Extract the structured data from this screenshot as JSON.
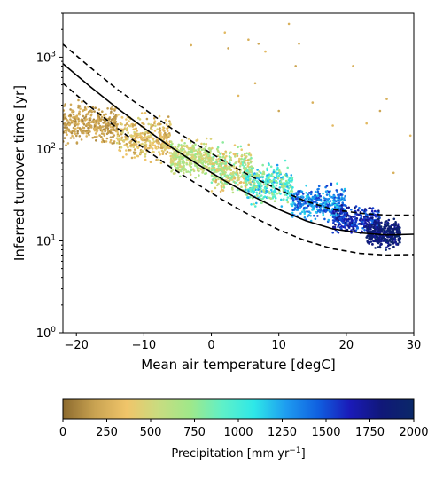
{
  "chart_data": {
    "type": "scatter",
    "xlabel": "Mean air temperature [degC]",
    "ylabel": "Inferred turnover time [yr]",
    "xlim": [
      -22,
      30
    ],
    "ylim": [
      1,
      3000
    ],
    "y_scale": "log",
    "x_ticks": [
      "−20",
      "−10",
      "0",
      "10",
      "20",
      "30"
    ],
    "x_tick_values": [
      -20,
      -10,
      0,
      10,
      20,
      30
    ],
    "y_ticks": [
      1,
      10,
      100,
      1000
    ],
    "grid": false,
    "colorbar": {
      "label_main": "Precipitation [mm yr",
      "label_exp": "−1",
      "label_end": "]",
      "range": [
        0,
        2000
      ],
      "ticks": [
        "0",
        "250",
        "500",
        "750",
        "1000",
        "1250",
        "1500",
        "1750",
        "2000"
      ],
      "colors": [
        "#8c6a2e",
        "#c9a352",
        "#f0c56a",
        "#c8dc80",
        "#9fe88a",
        "#5ff0c8",
        "#2ee8e8",
        "#1e9cf0",
        "#1060e0",
        "#1a1ab8",
        "#101878",
        "#0a2868"
      ]
    },
    "fit_curve": {
      "style": "solid",
      "color": "#000000",
      "x": [
        -22,
        -18,
        -14,
        -10,
        -6,
        -2,
        2,
        6,
        10,
        14,
        18,
        22,
        26,
        30
      ],
      "y": [
        850,
        480,
        280,
        170,
        105,
        68,
        45,
        31,
        22,
        16.5,
        13.5,
        12.2,
        11.6,
        11.8
      ]
    },
    "upper_bound": {
      "style": "dashed",
      "color": "#000000",
      "x": [
        -22,
        -18,
        -14,
        -10,
        -6,
        -2,
        2,
        6,
        10,
        14,
        18,
        22,
        26,
        30
      ],
      "y": [
        1380,
        780,
        450,
        275,
        170,
        110,
        73,
        50,
        36,
        27,
        22,
        20,
        19,
        19
      ]
    },
    "lower_bound": {
      "style": "dashed",
      "color": "#000000",
      "x": [
        -22,
        -18,
        -14,
        -10,
        -6,
        -2,
        2,
        6,
        10,
        14,
        18,
        22,
        26,
        30
      ],
      "y": [
        520,
        290,
        170,
        102,
        63,
        41,
        27,
        18.5,
        13.2,
        10,
        8.2,
        7.3,
        7.0,
        7.1
      ]
    },
    "scatter_clusters": [
      {
        "x": [
          -22,
          -14
        ],
        "y_center": 190,
        "y_spread": 0.18,
        "precip": [
          80,
          300
        ]
      },
      {
        "x": [
          -14,
          -6
        ],
        "y_center": 130,
        "y_spread": 0.2,
        "precip": [
          150,
          500
        ]
      },
      {
        "x": [
          -6,
          0
        ],
        "y_center": 80,
        "y_spread": 0.16,
        "precip": [
          400,
          750
        ]
      },
      {
        "x": [
          0,
          6
        ],
        "y_center": 60,
        "y_spread": 0.2,
        "precip": [
          250,
          900
        ]
      },
      {
        "x": [
          5,
          12
        ],
        "y_center": 40,
        "y_spread": 0.18,
        "precip": [
          600,
          1300
        ]
      },
      {
        "x": [
          12,
          20
        ],
        "y_center": 26,
        "y_spread": 0.15,
        "precip": [
          1100,
          1600
        ]
      },
      {
        "x": [
          18,
          25
        ],
        "y_center": 17,
        "y_spread": 0.13,
        "precip": [
          1400,
          1850
        ]
      },
      {
        "x": [
          23,
          28
        ],
        "y_center": 12,
        "y_spread": 0.12,
        "precip": [
          1700,
          2000
        ]
      }
    ],
    "outliers": {
      "x": [
        -3,
        2,
        2.5,
        5.5,
        7,
        8,
        11.5,
        13,
        21,
        23,
        26,
        29.5,
        15,
        18,
        25,
        27,
        10,
        4,
        6.5,
        12.5
      ],
      "y": [
        1350,
        1850,
        1250,
        1550,
        1400,
        1150,
        2300,
        1400,
        800,
        190,
        350,
        140,
        320,
        180,
        260,
        55,
        260,
        380,
        520,
        800
      ],
      "precip": [
        250,
        300,
        200,
        250,
        200,
        300,
        250,
        200,
        250,
        300,
        250,
        300,
        250,
        300,
        200,
        250,
        200,
        300,
        250,
        200
      ]
    }
  }
}
